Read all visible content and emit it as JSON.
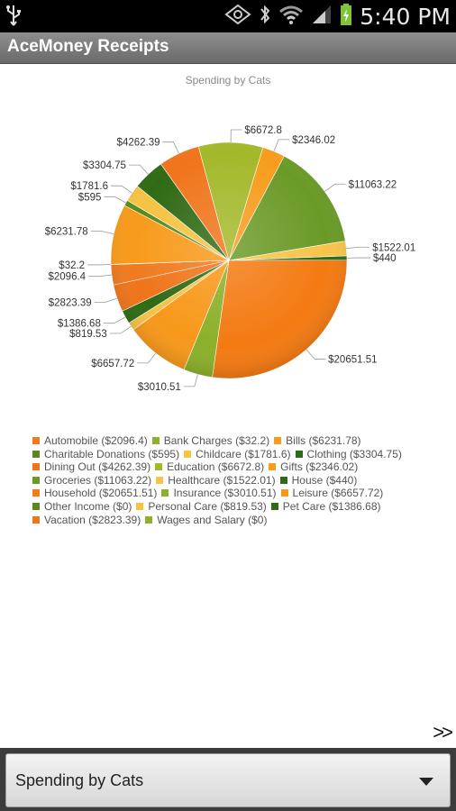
{
  "status_bar": {
    "time": "5:40 PM",
    "icons": [
      "usb-icon",
      "nfc-icon",
      "bluetooth-icon",
      "wifi-icon",
      "signal-icon",
      "battery-icon"
    ]
  },
  "app": {
    "title": "AceMoney Receipts"
  },
  "chart_data": {
    "type": "pie",
    "title": "Spending by Cats",
    "slices": [
      {
        "name": "Automobile",
        "value": 2096.4,
        "label": "$2096.4",
        "color": "#f07a1e"
      },
      {
        "name": "Bank Charges",
        "value": 32.2,
        "label": "$32.2",
        "color": "#8cb02a"
      },
      {
        "name": "Bills",
        "value": 6231.78,
        "label": "$6231.78",
        "color": "#f89a1a"
      },
      {
        "name": "Charitable Donations",
        "value": 595,
        "label": "$595",
        "color": "#5a8a1e"
      },
      {
        "name": "Childcare",
        "value": 1781.6,
        "label": "$1781.6",
        "color": "#f5c242"
      },
      {
        "name": "Clothing",
        "value": 3304.75,
        "label": "$3304.75",
        "color": "#2f6a14"
      },
      {
        "name": "Dining Out",
        "value": 4262.39,
        "label": "$4262.39",
        "color": "#f0741a"
      },
      {
        "name": "Education",
        "value": 6672.8,
        "label": "$6672.8",
        "color": "#a4b82a"
      },
      {
        "name": "Gifts",
        "value": 2346.02,
        "label": "$2346.02",
        "color": "#f89c1c"
      },
      {
        "name": "Groceries",
        "value": 11063.22,
        "label": "$11063.22",
        "color": "#6a9a26"
      },
      {
        "name": "Healthcare",
        "value": 1522.01,
        "label": "$1522.01",
        "color": "#f7c44a"
      },
      {
        "name": "House",
        "value": 440,
        "label": "$440",
        "color": "#2f6a14"
      },
      {
        "name": "Household",
        "value": 20651.51,
        "label": "$20651.51",
        "color": "#f47a12"
      },
      {
        "name": "Insurance",
        "value": 3010.51,
        "label": "$3010.51",
        "color": "#8cb02a"
      },
      {
        "name": "Leisure",
        "value": 6657.72,
        "label": "$6657.72",
        "color": "#f8981a"
      },
      {
        "name": "Other Income",
        "value": 0,
        "label": "$0",
        "color": "#5a8a1e"
      },
      {
        "name": "Personal Care",
        "value": 819.53,
        "label": "$819.53",
        "color": "#f5c242"
      },
      {
        "name": "Pet Care",
        "value": 1386.68,
        "label": "$1386.68",
        "color": "#2f6a14"
      },
      {
        "name": "Vacation",
        "value": 2823.39,
        "label": "$2823.39",
        "color": "#f0741a"
      },
      {
        "name": "Wages and Salary",
        "value": 0,
        "label": "$0",
        "color": "#8cb02a"
      }
    ],
    "legend": [
      [
        "Automobile ($2096.4)",
        "Bank Charges ($32.2)",
        "Bills ($6231.78)"
      ],
      [
        "Charitable Donations ($595)",
        "Childcare ($1781.6)",
        "Clothing ($3304.75)"
      ],
      [
        "Dining Out ($4262.39)",
        "Education ($6672.8)",
        "Gifts ($2346.02)"
      ],
      [
        "Groceries ($11063.22)",
        "Healthcare ($1522.01)",
        "House ($440)"
      ],
      [
        "Household ($20651.51)",
        "Insurance ($3010.51)",
        "Leisure ($6657.72)"
      ],
      [
        "Other Income ($0)",
        "Personal Care ($819.53)",
        "Pet Care ($1386.68)"
      ],
      [
        "Vacation ($2823.39)",
        "Wages and Salary ($0)"
      ]
    ],
    "legend_colors": [
      [
        "#f07a1e",
        "#8cb02a",
        "#f89a1a"
      ],
      [
        "#5a8a1e",
        "#f5c242",
        "#2f6a14"
      ],
      [
        "#f0741a",
        "#a4b82a",
        "#f89c1c"
      ],
      [
        "#6a9a26",
        "#f7c44a",
        "#2f6a14"
      ],
      [
        "#f47a12",
        "#8cb02a",
        "#f8981a"
      ],
      [
        "#5a8a1e",
        "#f5c242",
        "#2f6a14"
      ],
      [
        "#f0741a",
        "#8cb02a"
      ]
    ]
  },
  "navigation": {
    "next_label": ">>"
  },
  "report_selector": {
    "selected": "Spending by Cats"
  }
}
